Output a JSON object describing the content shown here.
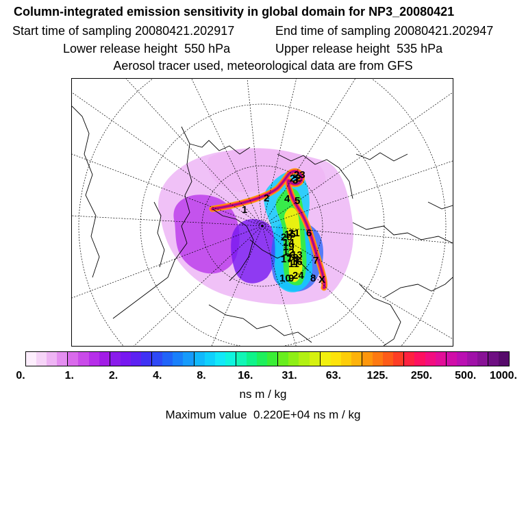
{
  "header": {
    "title": "Column-integrated emission sensitivity in global domain for NP3_20080421",
    "start_time": "Start time of sampling 20080421.202917",
    "end_time": "End time of sampling 20080421.202947",
    "lower_height": "Lower release height  550 hPa",
    "upper_height": "Upper release height  535 hPa",
    "tracer_info": "Aerosol tracer used, meteorological data are from GFS"
  },
  "legend": {
    "colors": [
      "#fdeefd",
      "#f6d4f8",
      "#eeb4f4",
      "#e48ef0",
      "#d96aeb",
      "#c94be9",
      "#b62ee9",
      "#a21de6",
      "#8a1ceb",
      "#7718f0",
      "#5d22f2",
      "#4032f4",
      "#2f49f6",
      "#2164f8",
      "#1a80fa",
      "#179bfb",
      "#11b8fc",
      "#0fd0fc",
      "#12e8f8",
      "#0ff4de",
      "#12f6b6",
      "#0ff38a",
      "#1ef05c",
      "#3aee36",
      "#68ee1e",
      "#8eef15",
      "#b2f012",
      "#d6f10f",
      "#f2f00e",
      "#fde30b",
      "#fdcd09",
      "#fdb20b",
      "#fd960c",
      "#fd7911",
      "#fd5b18",
      "#fd3d25",
      "#fd2240",
      "#fd1160",
      "#f20e80",
      "#e20e98",
      "#d00ea8",
      "#ba10b2",
      "#a012a8",
      "#881296",
      "#6e0f82",
      "#560a6a"
    ],
    "tick_labels": [
      "0.",
      "1.",
      "2.",
      "4.",
      "8.",
      "16.",
      "31.",
      "63.",
      "125.",
      "250.",
      "500.",
      "1000."
    ],
    "unit": "ns m / kg",
    "max_value_text": "Maximum value  0.220E+04 ns m / kg"
  },
  "map": {
    "trajectory_labels": [
      "1",
      "2",
      "3",
      "4",
      "5",
      "6",
      "7",
      "8",
      "9",
      "10",
      "11",
      "12",
      "13",
      "14",
      "15",
      "16",
      "17",
      "18",
      "19",
      "20",
      "21",
      "22",
      "23",
      "24"
    ],
    "end_marker": "X"
  }
}
